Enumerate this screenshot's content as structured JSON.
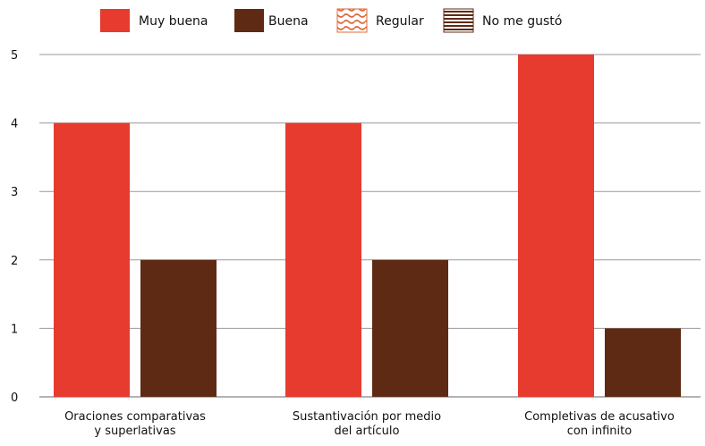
{
  "chart_data": {
    "type": "bar",
    "title": "",
    "xlabel": "",
    "ylabel": "",
    "ylim": [
      0,
      5
    ],
    "yticks": [
      0,
      1,
      2,
      3,
      4,
      5
    ],
    "grid": true,
    "legend_position": "top",
    "categories": [
      [
        "Oraciones comparativas",
        "y superlativas"
      ],
      [
        "Sustantivación por medio",
        "del artículo"
      ],
      [
        "Completivas de acusativo",
        "con infinito"
      ]
    ],
    "series": [
      {
        "name": "Muy buena",
        "values": [
          4,
          4,
          5
        ],
        "color": "#e63b2e",
        "pattern": "solid"
      },
      {
        "name": "Buena",
        "values": [
          2,
          2,
          1
        ],
        "color": "#5e2a14",
        "pattern": "solid"
      },
      {
        "name": "Regular",
        "values": [
          0,
          0,
          0
        ],
        "color": "#e06a3a",
        "pattern": "wavy"
      },
      {
        "name": "No me gustó",
        "values": [
          0,
          0,
          0
        ],
        "color": "#5e2a14",
        "pattern": "horizontal-lines"
      }
    ]
  }
}
